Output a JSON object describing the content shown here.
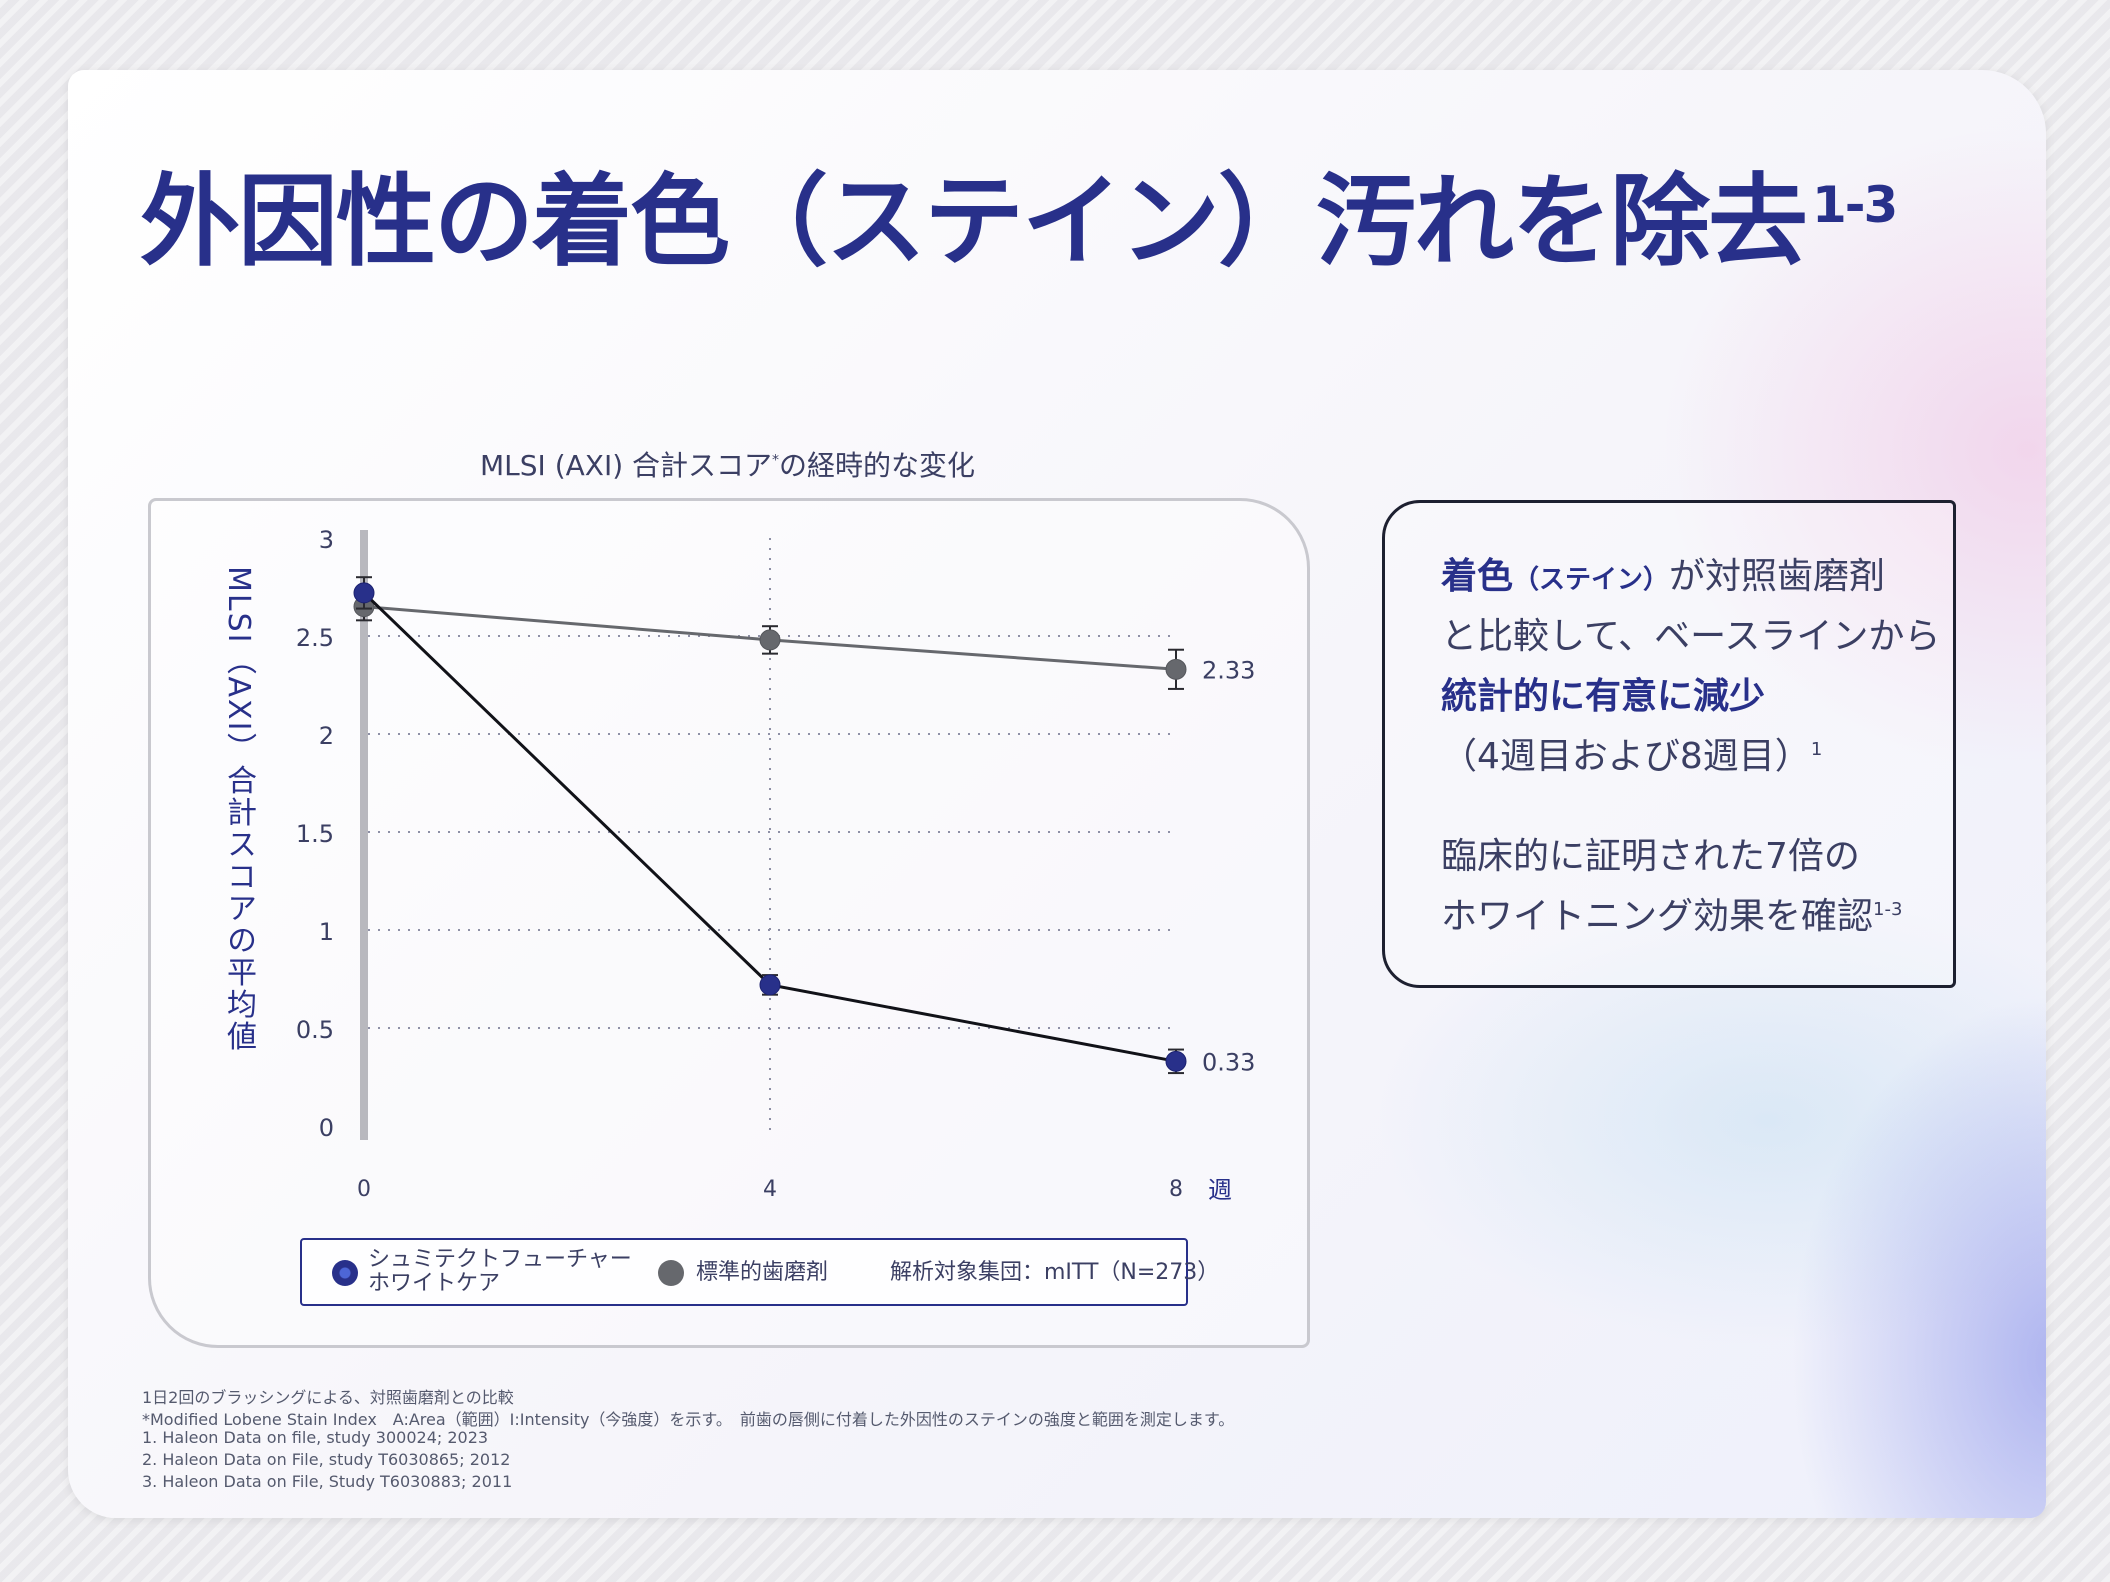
{
  "title": {
    "main": "外因性の着色（ステイン）汚れを除去",
    "sup": "1-3"
  },
  "chart_data": {
    "type": "line",
    "title": "MLSI (AXI) 合計スコア",
    "title_mark": "*",
    "title_suffix": "の経時的な変化",
    "ylabel": "MLSI（AXI）合計スコアの平均値",
    "x_unit": "週",
    "x": [
      0,
      4,
      8
    ],
    "x_ticks": [
      "0",
      "4",
      "8"
    ],
    "y_ticks": [
      "0",
      "0.5",
      "1",
      "1.5",
      "2",
      "2.5",
      "3"
    ],
    "ylim": [
      0,
      3
    ],
    "grid": "dotted horizontal",
    "series": [
      {
        "name": "標準的歯磨剤",
        "values": [
          2.65,
          2.48,
          2.33
        ],
        "errors": [
          0.07,
          0.07,
          0.1
        ],
        "color": "#66686d",
        "end_label": "2.33"
      },
      {
        "name": "シュミテクトフューチャーホワイトケア",
        "values": [
          2.72,
          0.72,
          0.33
        ],
        "errors": [
          0.08,
          0.05,
          0.06
        ],
        "color": "#28308a",
        "end_label": "0.33"
      }
    ],
    "legend": {
      "series1_line1": "シュミテクトフューチャー",
      "series1_line2": "ホワイトケア",
      "series2": "標準的歯磨剤",
      "population": "解析対象集団：mITT（N=273）",
      "placement": "bottom"
    }
  },
  "box": {
    "l1_bold": "着色",
    "l1_small": "（ステイン）",
    "l1_rest": "が対照歯磨剤",
    "l2": "と比較して、ベースラインから",
    "l3_bold": "統計的に有意に減少",
    "l4": "（4週目および8週目）",
    "l4_sup": "1",
    "l5": "臨床的に証明された7倍の",
    "l6": "ホワイトニング効果を確認",
    "l6_sup": "1-3"
  },
  "footnotes": [
    "1日2回のブラッシングによる、対照歯磨剤との比較",
    "*Modified Lobene Stain Index　A:Area（範囲）I:Intensity（今強度）を示す。　前歯の唇側に付着した外因性のステインの強度と範囲を測定します。",
    "1. Haleon Data on file, study 300024; 2023",
    "2. Haleon Data on File, study T6030865; 2012",
    "3. Haleon Data on File, Study T6030883; 2011"
  ],
  "colors": {
    "brand": "#28308a",
    "comparator": "#66686d"
  }
}
